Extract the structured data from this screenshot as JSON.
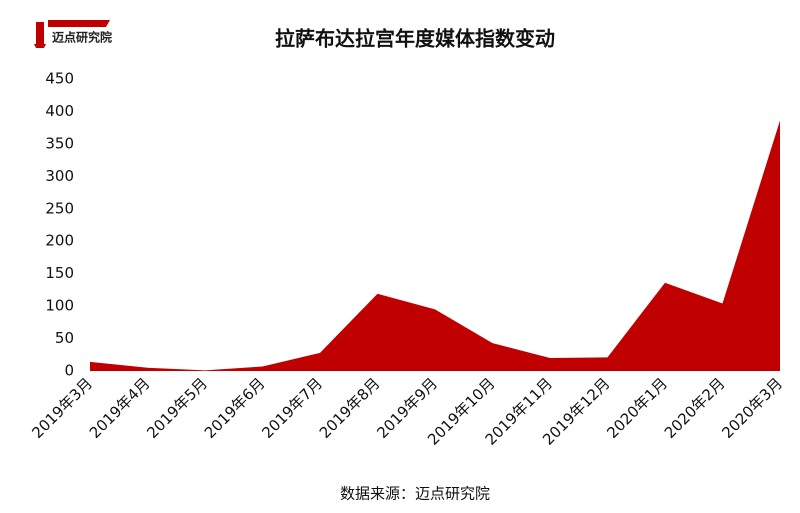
{
  "chart_data": {
    "type": "area",
    "title": "拉萨布达拉宫年度媒体指数变动",
    "logo_text": "迈点研究院",
    "source": "数据来源：迈点研究院",
    "categories": [
      "2019年3月",
      "2019年4月",
      "2019年5月",
      "2019年6月",
      "2019年7月",
      "2019年8月",
      "2019年9月",
      "2019年10月",
      "2019年11月",
      "2019年12月",
      "2020年1月",
      "2020年2月",
      "2020年3月"
    ],
    "values": [
      14,
      5,
      1,
      7,
      28,
      119,
      95,
      43,
      20,
      21,
      136,
      104,
      386
    ],
    "color": "#c00000",
    "ylim": [
      0,
      450
    ],
    "yticks": [
      0,
      50,
      100,
      150,
      200,
      250,
      300,
      350,
      400,
      450
    ],
    "grid": false
  }
}
